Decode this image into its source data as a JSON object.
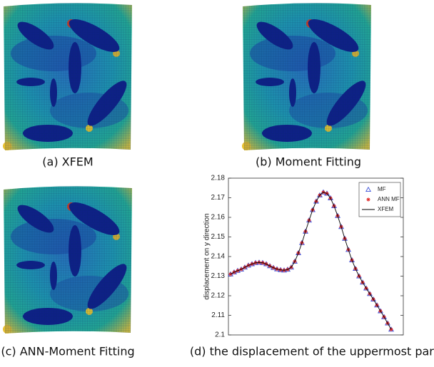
{
  "panels": [
    {
      "caption": "(a) XFEM"
    },
    {
      "caption": "(b) Moment Fitting"
    },
    {
      "caption": "(c) ANN-Moment Fitting"
    },
    {
      "caption": "(d) the displacement of the uppermost part"
    }
  ],
  "chart_data": {
    "type": "line",
    "ylabel": "displacement on y direction",
    "ylim": [
      2.1,
      2.18
    ],
    "yticks": [
      2.1,
      2.11,
      2.12,
      2.13,
      2.14,
      2.15,
      2.16,
      2.17,
      2.18
    ],
    "grid": false,
    "legend": "upper right",
    "series": [
      {
        "name": "MF",
        "color": "#3a4fd8",
        "marker": "triangle",
        "values": [
          2.131,
          2.132,
          2.1328,
          2.1335,
          2.1345,
          2.1355,
          2.1362,
          2.1368,
          2.137,
          2.1368,
          2.1362,
          2.1352,
          2.1343,
          2.1336,
          2.1332,
          2.133,
          2.1334,
          2.1345,
          2.1375,
          2.1418,
          2.147,
          2.1528,
          2.1585,
          2.1638,
          2.1682,
          2.1713,
          2.1728,
          2.1722,
          2.1698,
          2.1658,
          2.1608,
          2.1552,
          2.1492,
          2.1435,
          2.1382,
          2.1338,
          2.13,
          2.1268,
          2.1238,
          2.121,
          2.1182,
          2.1152,
          2.1122,
          2.1092,
          2.106,
          2.1028
        ]
      },
      {
        "name": "ANN MF",
        "color": "#e02a2a",
        "marker": "star",
        "values": [
          2.131,
          2.132,
          2.1328,
          2.1335,
          2.1345,
          2.1355,
          2.1362,
          2.1368,
          2.137,
          2.1368,
          2.1362,
          2.1352,
          2.1343,
          2.1336,
          2.1332,
          2.133,
          2.1334,
          2.1345,
          2.1375,
          2.1418,
          2.147,
          2.1528,
          2.1585,
          2.1638,
          2.1682,
          2.1713,
          2.1728,
          2.1722,
          2.1698,
          2.1658,
          2.1608,
          2.1552,
          2.1492,
          2.1435,
          2.1382,
          2.1338,
          2.13,
          2.1268,
          2.1238,
          2.121,
          2.1182,
          2.1152,
          2.1122,
          2.1092,
          2.106,
          2.1028
        ]
      },
      {
        "name": "XFEM",
        "color": "#000000",
        "marker": "line",
        "values": [
          2.131,
          2.132,
          2.1328,
          2.1335,
          2.1345,
          2.1355,
          2.1362,
          2.1368,
          2.137,
          2.1368,
          2.1362,
          2.1352,
          2.1343,
          2.1336,
          2.1332,
          2.133,
          2.1334,
          2.1345,
          2.1375,
          2.1418,
          2.147,
          2.1528,
          2.1585,
          2.1638,
          2.1682,
          2.1713,
          2.1728,
          2.1722,
          2.1698,
          2.1658,
          2.1608,
          2.1552,
          2.1492,
          2.1435,
          2.1382,
          2.1338,
          2.13,
          2.1268,
          2.1238,
          2.121,
          2.1182,
          2.1152,
          2.1122,
          2.1092,
          2.106,
          2.1028
        ]
      }
    ]
  }
}
